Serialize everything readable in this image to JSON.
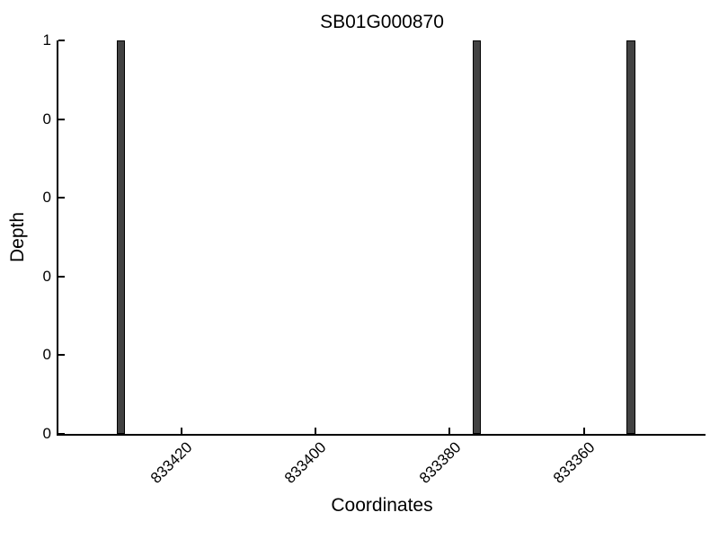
{
  "chart_data": {
    "type": "bar",
    "title": "SB01G000870",
    "xlabel": "Coordinates",
    "ylabel": "Depth",
    "x_axis_reversed": true,
    "xlim": [
      833438.3,
      833341.9
    ],
    "ylim": [
      0,
      1
    ],
    "x_ticks": [
      {
        "value": 833420,
        "label": "833420"
      },
      {
        "value": 833400,
        "label": "833400"
      },
      {
        "value": 833380,
        "label": "833380"
      },
      {
        "value": 833360,
        "label": "833360"
      }
    ],
    "y_ticks": [
      {
        "value": 0.0,
        "label": "0"
      },
      {
        "value": 0.2,
        "label": "0"
      },
      {
        "value": 0.4,
        "label": "0"
      },
      {
        "value": 0.6,
        "label": "0"
      },
      {
        "value": 0.8,
        "label": "0"
      },
      {
        "value": 1.0,
        "label": "1"
      }
    ],
    "bars": [
      {
        "x": 833429,
        "depth": 1
      },
      {
        "x": 833376,
        "depth": 1
      },
      {
        "x": 833353,
        "depth": 1
      }
    ],
    "bar_width_units": 1.3,
    "grid": false,
    "tick_direction": "in",
    "x_tick_label_rotation_deg": 45,
    "colors": {
      "background": "#ffffff",
      "bar_fill": "#424242",
      "bar_edge": "#000000",
      "axis": "#000000",
      "text": "#000000"
    }
  }
}
